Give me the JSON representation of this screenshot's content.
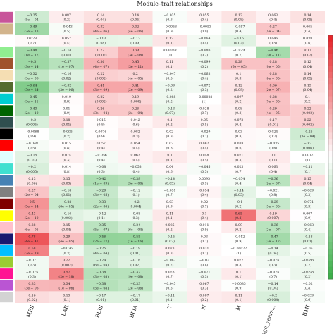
{
  "chart_data": {
    "type": "heatmap",
    "title": "Module–trait relationships",
    "columns": [
      "MES",
      "LAR",
      "BLIS",
      "BLIA",
      "T",
      "N",
      "M",
      "age_years...",
      "BMI"
    ],
    "row_colors": [
      "#c8559a",
      "#d2b48c",
      "#ffffff",
      "#90ee90",
      "#a0522d",
      "#f5deb3",
      "#556b2f",
      "#00ced1",
      "#006400",
      "#2f4f4f",
      "#000000",
      "#ff0000",
      "#e0ffff",
      "#40e0d0",
      "#4682b4",
      "#808080",
      "#800000",
      "#ffff00",
      "#ffc0cb",
      "#191970",
      "#00bfff",
      "#9acd32",
      "#ff1493",
      "#ba55d3",
      "#d3d3d3"
    ],
    "colorscale": {
      "min": -1,
      "max": 1,
      "low": "#3cb04a",
      "mid": "#ffffff",
      "high": "#e8262b"
    },
    "cells": [
      [
        [
          "−0.25",
          "(5e − 04)"
        ],
        [
          "0.087",
          "(0.2)"
        ],
        [
          "0.14",
          "(0.04)"
        ],
        [
          "0.14",
          "(0.05)"
        ],
        [
          "−0.035",
          "(0.6)"
        ],
        [
          "0.055",
          "(0.4)"
        ],
        [
          "0.13",
          "(0.08)"
        ],
        [
          "0.063",
          "(0.4)"
        ],
        [
          "0.14",
          "(0.05)"
        ]
      ],
      [
        [
          "−0.49",
          "(3e − 13)"
        ],
        [
          "−0.043",
          "(0.5)"
        ],
        [
          "0.32",
          "(4e − 06)"
        ],
        [
          "0.32",
          "(4e − 06)"
        ],
        [
          "−0.0058",
          "(0.9)"
        ],
        [
          "−0.0053",
          "(0.9)"
        ],
        [
          "−0.057",
          "(0.4)"
        ],
        [
          "0.27",
          "(1e − 04)"
        ],
        [
          "0.065",
          "(0.4)"
        ]
      ],
      [
        [
          "0.028",
          "(0.7)"
        ],
        [
          "0.057",
          "(0.4)"
        ],
        [
          "−0.13",
          "(0.08)"
        ],
        [
          "−0.12",
          "(0.09)"
        ],
        [
          "0.12",
          "(0.1)"
        ],
        [
          "−0.064",
          "(0.4)"
        ],
        [
          "−0.16",
          "(0.02)"
        ],
        [
          "0.046",
          "(0.5)"
        ],
        [
          "0.038",
          "(0.6)"
        ]
      ],
      [
        [
          "−0.48",
          "(1e − 12)"
        ],
        [
          "−0.18",
          "(0.01)"
        ],
        [
          "0.22",
          "(0.002)"
        ],
        [
          "0.39",
          "(3e − 08)"
        ],
        [
          "0.00069",
          "(1)"
        ],
        [
          "−0.086",
          "(0.2)"
        ],
        [
          "−0.029",
          "(0.7)"
        ],
        [
          "−0.46",
          "(3e − 11)"
        ],
        [
          "0.17",
          "(0.02)"
        ]
      ],
      [
        [
          "−0.5",
          "(3e − 14)"
        ],
        [
          "−0.37",
          "(1e − 07)"
        ],
        [
          "0.36",
          "(4e − 07)"
        ],
        [
          "0.45",
          "(3e − 11)"
        ],
        [
          "0.11",
          "(0.1)"
        ],
        [
          "−0.099",
          "(0.2)"
        ],
        [
          "0.28",
          "(6e − 05)"
        ],
        [
          "0.28",
          "(9e − 05)"
        ],
        [
          "0.12",
          "(0.04)"
        ]
      ],
      [
        [
          "−0.32",
          "(3e − 06)"
        ],
        [
          "−0.16",
          "(0.02)"
        ],
        [
          "0.22",
          "(0.002)"
        ],
        [
          "0.2",
          "(4e − 05)"
        ],
        [
          "−0.047",
          "(0.5)"
        ],
        [
          "−0.063",
          "(0.4)"
        ],
        [
          "0.1",
          "(0.3)"
        ],
        [
          "0.28",
          "(6e − 05)"
        ],
        [
          "0.14",
          "(0.05)"
        ]
      ],
      [
        [
          "−0.64",
          "(5e − 24)"
        ],
        [
          "−0.32",
          "(3e − 06)"
        ],
        [
          "0.41",
          "(3e − 09)"
        ],
        [
          "0.41",
          "(2e − 09)"
        ],
        [
          "−0.09",
          "(0.2)"
        ],
        [
          "−0.072",
          "(0.3)"
        ],
        [
          "0.12",
          "(0.09)"
        ],
        [
          "0.36",
          "(2e − 07)"
        ],
        [
          "0.13",
          "(0.04)"
        ]
      ],
      [
        [
          "−0.45",
          "(3e − 11)"
        ],
        [
          "0.019",
          "(0.8)"
        ],
        [
          "0.22",
          "(0.002)"
        ],
        [
          "0.19",
          "(0.008)"
        ],
        [
          "−0.088",
          "(0.2)"
        ],
        [
          "−0.00028",
          "(1)"
        ],
        [
          "0.097",
          "(0.2)"
        ],
        [
          "0.28",
          "(7e − 05)"
        ],
        [
          "0.1",
          "(0.2)"
        ]
      ],
      [
        [
          "−0.43",
          "(2e − 10)"
        ],
        [
          "0.01",
          "(0.9)"
        ],
        [
          "0.26",
          "(3e − 04)"
        ],
        [
          "0.26",
          "(2e − 04)"
        ],
        [
          "−0.13",
          "(0.07)"
        ],
        [
          "0.028",
          "(0.7)"
        ],
        [
          "0.08",
          "(0.3)"
        ],
        [
          "0.29",
          "(4e − 05)"
        ],
        [
          "0.22",
          "(0.002)"
        ]
      ],
      [
        [
          "−0.2",
          "(0.005)"
        ],
        [
          "0.18",
          "(0.01)"
        ],
        [
          "0.015",
          "(0.8)"
        ],
        [
          "0.042",
          "(0.6)"
        ],
        [
          "0.1",
          "(0.2)"
        ],
        [
          "0.05",
          "(0.5)"
        ],
        [
          "0.073",
          "(0.4)"
        ],
        [
          "0.17",
          "(0.01)"
        ],
        [
          "0.22",
          "(0.002)"
        ]
      ],
      [
        [
          "−0.0068",
          "(0.9)"
        ],
        [
          "−0.095",
          "(0.2)"
        ],
        [
          "0.0076",
          "(0.9)"
        ],
        [
          "0.082",
          "(0.3)"
        ],
        [
          "0.02",
          "(0.8)"
        ],
        [
          "−0.029",
          "(0.7)"
        ],
        [
          "0.03",
          "(0.8)"
        ],
        [
          "0.024",
          "(0.7)"
        ],
        [
          "−0.25",
          "(3e − 04)"
        ]
      ],
      [
        [
          "−0.048",
          "(0.5)"
        ],
        [
          "0.015",
          "(0.8)"
        ],
        [
          "0.057",
          "(0.4)"
        ],
        [
          "0.054",
          "(0.4)"
        ],
        [
          "0.02",
          "(0.8)"
        ],
        [
          "0.062",
          "(0.4)"
        ],
        [
          "0.038",
          "(0.6)"
        ],
        [
          "−0.035",
          "(0.6)"
        ],
        [
          "−0.2",
          "(0.006)"
        ]
      ],
      [
        [
          "−0.15",
          "(0.03)"
        ],
        [
          "0.074",
          "(0.3)"
        ],
        [
          "−0.056",
          "(0.4)"
        ],
        [
          "0.063",
          "(0.4)"
        ],
        [
          "0.1",
          "(0.1)"
        ],
        [
          "0.048",
          "(0.5)"
        ],
        [
          "0.071",
          "(0.3)"
        ],
        [
          "0.1",
          "(0.1)"
        ],
        [
          "0.0012",
          "(1)"
        ]
      ],
      [
        [
          "−0.2",
          "(0.005)"
        ],
        [
          "0.014",
          "(0.8)"
        ],
        [
          "−0.08",
          "(0.3)"
        ],
        [
          "−0.058",
          "(0.4)"
        ],
        [
          "0.04",
          "(0.6)"
        ],
        [
          "−0.045",
          "(0.5)"
        ],
        [
          "0.023",
          "(0.7)"
        ],
        [
          "0.063",
          "(0.4)"
        ],
        [
          "−0.11",
          "(0.1)"
        ]
      ],
      [
        [
          "0.13",
          "(0.06)"
        ],
        [
          "0.15",
          "(0.03)"
        ],
        [
          "−0.42",
          "(1e − 09)"
        ],
        [
          "−0.38",
          "(5e − 08)"
        ],
        [
          "−0.14",
          "(0.05)"
        ],
        [
          "0.0095",
          "(0.9)"
        ],
        [
          "−0.054",
          "(0.4)"
        ],
        [
          "−0.36",
          "(2e − 07)"
        ],
        [
          "0.15",
          "(0.04)"
        ]
      ],
      [
        [
          "0.27",
          "(2e − 04)"
        ],
        [
          "−0.18",
          "(0.01)"
        ],
        [
          "−0.29",
          "(3e − 05)"
        ],
        [
          "−0.12",
          "(0.1)"
        ],
        [
          "−0.031",
          "(0.7)"
        ],
        [
          "0.054",
          "(0.4)"
        ],
        [
          "−0.14",
          "(0.05)"
        ],
        [
          "−0.021",
          "(0.8)"
        ],
        [
          "−0.069",
          "(0.3)"
        ]
      ],
      [
        [
          "0.5",
          "(5e − 14)"
        ],
        [
          "−0.28",
          "(6e − 05)"
        ],
        [
          "−0.33",
          "(2e − 06)"
        ],
        [
          "−0.2",
          "(0.004)"
        ],
        [
          "0.03",
          "(0.9)"
        ],
        [
          "0.02",
          "(0.7)"
        ],
        [
          "−0.1",
          "(0.2)"
        ],
        [
          "−0.29",
          "(3e − 05)"
        ],
        [
          "−0.071",
          "(0.3)"
        ]
      ],
      [
        [
          "0.43",
          "(2e − 10)"
        ],
        [
          "−0.16",
          "(0.002)"
        ],
        [
          "−0.12",
          "(0.1)"
        ],
        [
          "−0.08",
          "(0.3)"
        ],
        [
          "0.11",
          "(0.1)"
        ],
        [
          "0.1",
          "(0.4)"
        ],
        [
          "0.65",
          "(0.8)"
        ],
        [
          "0.19",
          "(0.007)"
        ],
        [
          "0.007",
          "(0.9)"
        ]
      ],
      [
        [
          "0.28",
          "(6e − 05)"
        ],
        [
          "0.15",
          "(0.04)"
        ],
        [
          "−0.35",
          "(5e − 07)"
        ],
        [
          "−0.24",
          "(6e − 04)"
        ],
        [
          "0.085",
          "(0.2)"
        ],
        [
          "0.011",
          "(0.9)"
        ],
        [
          "0.09",
          "(0.2)"
        ],
        [
          "−0.36",
          "(2e − 07)"
        ],
        [
          "−0.063",
          "(0.4)"
        ]
      ],
      [
        [
          "0.78",
          "(4e − 41)"
        ],
        [
          "0.29",
          "(4e − 05)"
        ],
        [
          "−0.56",
          "(2e − 17)"
        ],
        [
          "−0.55",
          "(1e − 16)"
        ],
        [
          "−0.15",
          "(0.03)"
        ],
        [
          "0.03",
          "(0.7)"
        ],
        [
          "−0.012",
          "(0.9)"
        ],
        [
          "−0.47",
          "(2e − 12)"
        ],
        [
          "−0.18",
          "(0.01)"
        ]
      ],
      [
        [
          "0.58",
          "(3e − 19)"
        ],
        [
          "−0.076",
          "(0.3)"
        ],
        [
          "−0.25",
          "(4e − 04)"
        ],
        [
          "−0.19",
          "(0.01)"
        ],
        [
          "0.073",
          "(0.3)"
        ],
        [
          "0.031",
          "(0.7)"
        ],
        [
          "−0.00022",
          "(1)"
        ],
        [
          "−0.14",
          "(0.04)"
        ],
        [
          "−0.05",
          "(0.5)"
        ]
      ],
      [
        [
          "−0.071",
          "(0.3)"
        ],
        [
          "0.22",
          "(0.002)"
        ],
        [
          "−0.24",
          "(6e − 04)"
        ],
        [
          "−0.16",
          "(0.02)"
        ],
        [
          "−0.087",
          "(0.2)"
        ],
        [
          "−0.02",
          "(0.8)"
        ],
        [
          "0.022",
          "(0.8)"
        ],
        [
          "−0.074",
          "(0.3)"
        ],
        [
          "−0.086",
          "(0.2)"
        ]
      ],
      [
        [
          "−0.075",
          "(0.3)"
        ],
        [
          "0.57",
          "(2e − 18)"
        ],
        [
          "−0.38",
          "(3e − 08)"
        ],
        [
          "−0.37",
          "(9e − 08)"
        ],
        [
          "0.028",
          "(0.7)"
        ],
        [
          "−0.071",
          "(0.3)"
        ],
        [
          "0.1",
          "(0.1)"
        ],
        [
          "−0.024",
          "(0.7)"
        ],
        [
          "−0.098",
          "(0.2)"
        ]
      ],
      [
        [
          "0.33",
          "(3e − 06)"
        ],
        [
          "0.34",
          "(1e − 06)"
        ],
        [
          "−0.38",
          "(5e − 08)"
        ],
        [
          "−0.33",
          "(2e − 06)"
        ],
        [
          "−0.045",
          "(0.5)"
        ],
        [
          "0.067",
          "(0.3)"
        ],
        [
          "−0.0085",
          "(0.9)"
        ],
        [
          "−0.14",
          "(0.04)"
        ],
        [
          "−0.02",
          "(0.8)"
        ]
      ],
      [
        [
          "0.16",
          "(0.02)"
        ],
        [
          "0.13",
          "(0.1)"
        ],
        [
          "−0.17",
          "(0.01)"
        ],
        [
          "−0.17",
          "(0.01)"
        ],
        [
          "−0.11",
          "(0.1)"
        ],
        [
          "0.087",
          "(0.2)"
        ],
        [
          "0.11",
          "(0.1)"
        ],
        [
          "−0.2",
          "(0.004)"
        ],
        [
          "−0.039",
          "(0.6)"
        ]
      ]
    ]
  }
}
